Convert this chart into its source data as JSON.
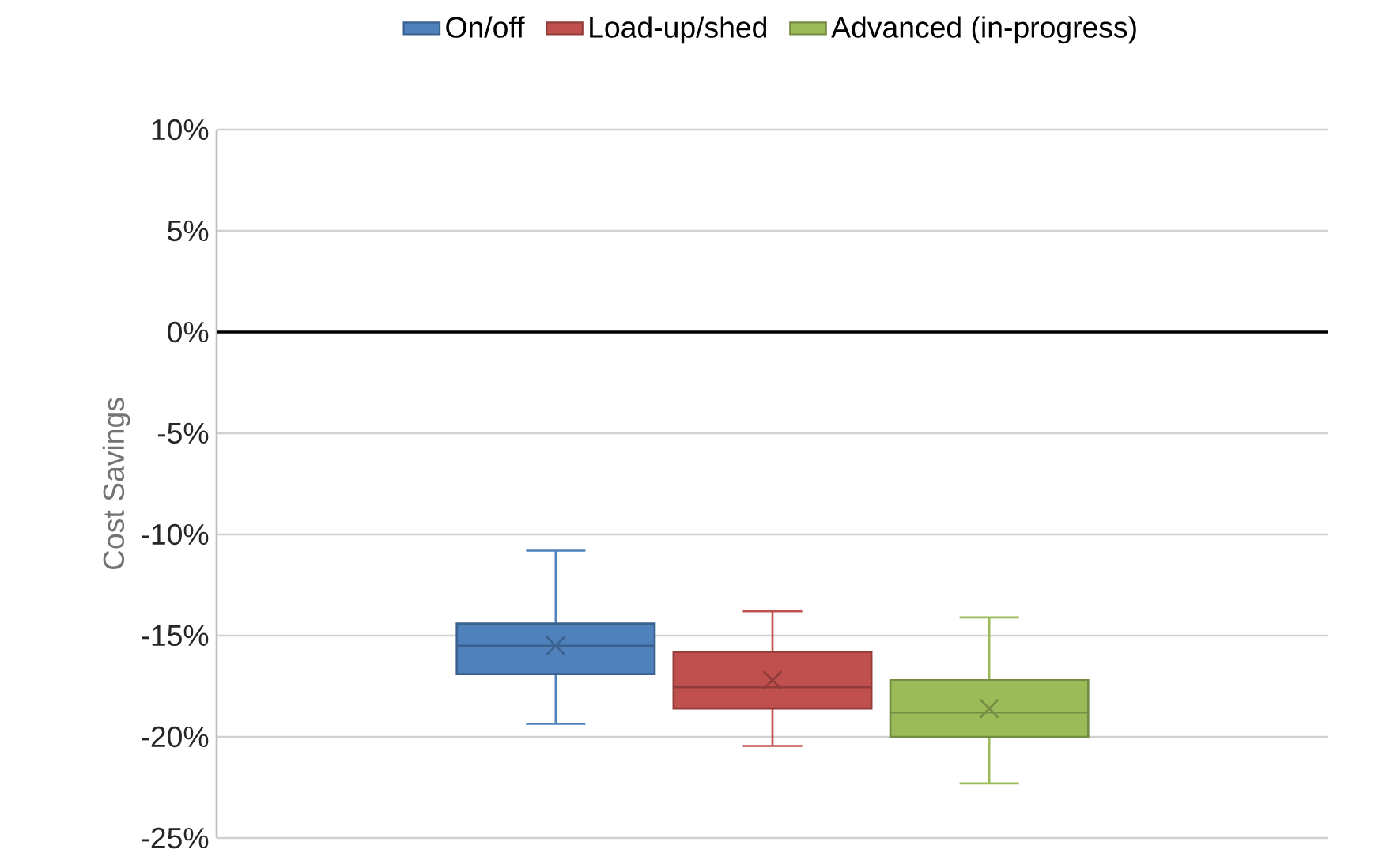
{
  "chart_data": {
    "type": "box",
    "ylabel": "Cost Savings",
    "categories": [
      null
    ],
    "series": [
      {
        "name": "On/off",
        "color": "#4f81bd",
        "boxes": [
          {
            "low": -19.35,
            "q1": -16.9,
            "median": -15.5,
            "q3": -14.4,
            "high": -10.8,
            "mean": -15.5
          }
        ]
      },
      {
        "name": "Load-up/shed",
        "color": "#c0504d",
        "boxes": [
          {
            "low": -20.45,
            "q1": -18.6,
            "median": -17.55,
            "q3": -15.8,
            "high": -13.8,
            "mean": -17.2
          }
        ]
      },
      {
        "name": "Advanced (in-progress)",
        "color": "#9bbb59",
        "boxes": [
          {
            "low": -22.3,
            "q1": -20.0,
            "median": -18.8,
            "q3": -17.2,
            "high": -14.1,
            "mean": -18.6
          }
        ]
      }
    ],
    "ylim": [
      -25,
      10
    ],
    "yticks": [
      {
        "value": -25,
        "label": "-25%"
      },
      {
        "value": -20,
        "label": "-20%"
      },
      {
        "value": -15,
        "label": "-15%"
      },
      {
        "value": -10,
        "label": "-10%"
      },
      {
        "value": -5,
        "label": "-5%"
      },
      {
        "value": 0,
        "label": "0%"
      },
      {
        "value": 5,
        "label": "5%"
      },
      {
        "value": 10,
        "label": "10%"
      }
    ],
    "grid": "y",
    "legend": "top",
    "marker": "cross",
    "ref_lines": [
      {
        "axis": "y",
        "value": 0,
        "color": "#000000"
      }
    ]
  }
}
